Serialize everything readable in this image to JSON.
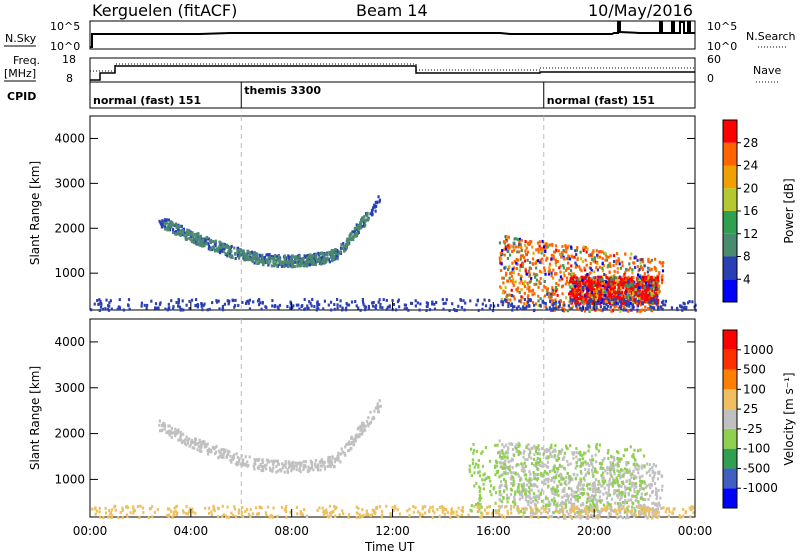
{
  "header": {
    "site": "Kerguelen (fitACF)",
    "beam": "Beam 14",
    "date": "10/May/2016"
  },
  "top_panels": {
    "nsky_label": "N.Sky",
    "nsky_ticks": [
      "10^5",
      "10^0"
    ],
    "nsearch_label": "N.Search",
    "nsearch_ticks": [
      "10^5",
      "10^0"
    ],
    "freq_label": "Freq.",
    "freq_unit": "[MHz]",
    "freq_ticks": [
      "18",
      "8"
    ],
    "nave_label": "Nave",
    "nave_ticks": [
      "60",
      "0"
    ],
    "cpid_label": "CPID",
    "cpid_segments": [
      {
        "label": "normal (fast) 151",
        "start_hour": 0,
        "end_hour": 6
      },
      {
        "label": "themis 3300",
        "start_hour": 6,
        "end_hour": 18
      },
      {
        "label": "normal (fast) 151",
        "start_hour": 18,
        "end_hour": 24
      }
    ]
  },
  "chart_data": [
    {
      "type": "heatmap",
      "title": "",
      "xlabel": "",
      "ylabel": "Slant Range [km]",
      "x_ticks": [
        "00:00",
        "04:00",
        "08:00",
        "12:00",
        "16:00",
        "20:00",
        "00:00"
      ],
      "xlim": [
        0,
        24
      ],
      "ylim": [
        180,
        4500
      ],
      "y_ticks": [
        1000,
        2000,
        3000,
        4000
      ],
      "colorbar": {
        "label": "Power [dB]",
        "ticks": [
          "28",
          "24",
          "20",
          "16",
          "12",
          "8",
          "4"
        ],
        "colors": [
          "#0000ff",
          "#2a3fb4",
          "#4a8a6e",
          "#2ea050",
          "#b4c832",
          "#f0a000",
          "#ff6400",
          "#ff0000"
        ]
      },
      "scatter_regions": [
        {
          "name": "arc",
          "hour_start": 2.7,
          "hour_end": 11.5,
          "color": "#2a3fb4",
          "intensity": "low"
        },
        {
          "name": "arc-green",
          "hour_start": 2.9,
          "hour_end": 11.0,
          "color": "#4a8a6e",
          "intensity": "low"
        },
        {
          "name": "late-blob",
          "hour_start": 16.2,
          "hour_end": 22.7,
          "color": "#ff6400",
          "intensity": "high"
        },
        {
          "name": "strong-echoes",
          "hour_start": 19.0,
          "hour_end": 22.5,
          "color": "#ff0000",
          "intensity": "high"
        },
        {
          "name": "ground-scatter-band",
          "hour_start": 0.0,
          "hour_end": 24.0,
          "color": "#2a3fb4",
          "intensity": "low"
        }
      ]
    },
    {
      "type": "heatmap",
      "title": "",
      "xlabel": "Time UT",
      "ylabel": "Slant Range [km]",
      "x_ticks": [
        "00:00",
        "04:00",
        "08:00",
        "12:00",
        "16:00",
        "20:00",
        "00:00"
      ],
      "xlim": [
        0,
        24
      ],
      "ylim": [
        180,
        4500
      ],
      "y_ticks": [
        1000,
        2000,
        3000,
        4000
      ],
      "colorbar": {
        "label": "Velocity [m s⁻¹]",
        "ticks": [
          "1000",
          "500",
          "100",
          "25",
          "-25",
          "-100",
          "-500",
          "-1000"
        ],
        "colors": [
          "#0000ff",
          "#4060c0",
          "#2ea050",
          "#90d050",
          "#c0c0c0",
          "#f0c060",
          "#ff8000",
          "#ff3000",
          "#ff0000"
        ]
      },
      "scatter_regions": [
        {
          "name": "arc",
          "hour_start": 2.7,
          "hour_end": 11.5,
          "color": "#c0c0c0",
          "intensity": "low"
        },
        {
          "name": "late-blob",
          "hour_start": 16.2,
          "hour_end": 22.7,
          "color": "#c0c0c0",
          "intensity": "high"
        },
        {
          "name": "green-echoes",
          "hour_start": 15.0,
          "hour_end": 22.0,
          "color": "#90d050",
          "intensity": "low"
        },
        {
          "name": "near-range",
          "hour_start": 0.0,
          "hour_end": 24.0,
          "color": "#f0c060",
          "intensity": "low"
        }
      ]
    }
  ]
}
